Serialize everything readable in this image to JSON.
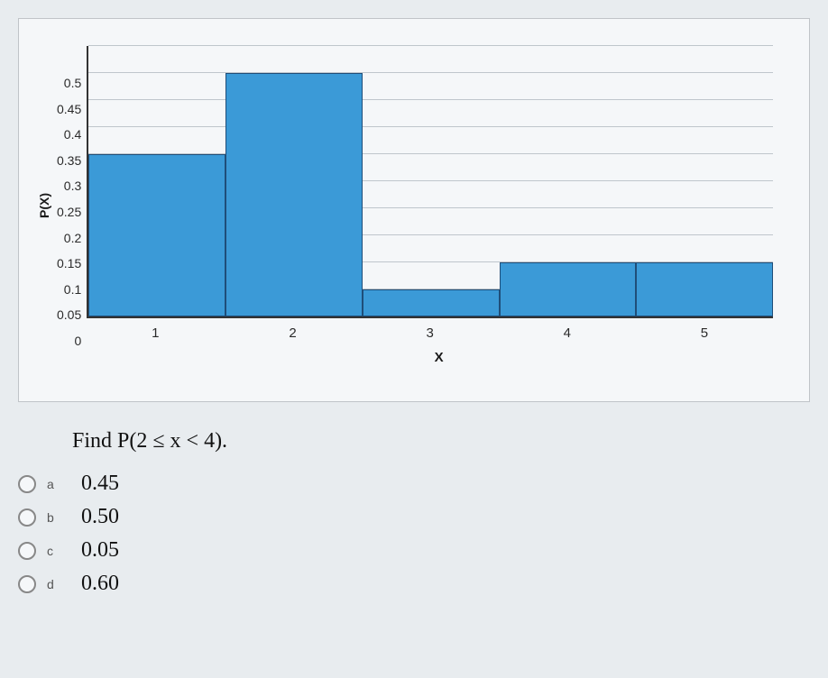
{
  "chart": {
    "type": "histogram",
    "ylabel": "P(X)",
    "xlabel": "X",
    "ylim": [
      0,
      0.5
    ],
    "ytick_step": 0.05,
    "yticks": [
      "0.5",
      "0.45",
      "0.4",
      "0.35",
      "0.3",
      "0.25",
      "0.2",
      "0.15",
      "0.1",
      "0.05",
      "0"
    ],
    "xticks": [
      "1",
      "2",
      "3",
      "4",
      "5"
    ],
    "bars": [
      {
        "x": 1,
        "value": 0.3
      },
      {
        "x": 2,
        "value": 0.45
      },
      {
        "x": 3,
        "value": 0.05
      },
      {
        "x": 4,
        "value": 0.1
      },
      {
        "x": 5,
        "value": 0.1
      }
    ],
    "bar_fill": "#3b9ad7",
    "bar_border": "#1f4e79",
    "grid_color": "#bfc6cc",
    "background_color": "#f5f7f9",
    "axis_color": "#333333",
    "tick_fontsize": 14,
    "ylabel_fontsize": 14,
    "xlabel_fontsize": 15
  },
  "question": "Find P(2 ≤ x < 4).",
  "options": [
    {
      "letter": "a",
      "value": "0.45"
    },
    {
      "letter": "b",
      "value": "0.50"
    },
    {
      "letter": "c",
      "value": "0.05"
    },
    {
      "letter": "d",
      "value": "0.60"
    }
  ]
}
